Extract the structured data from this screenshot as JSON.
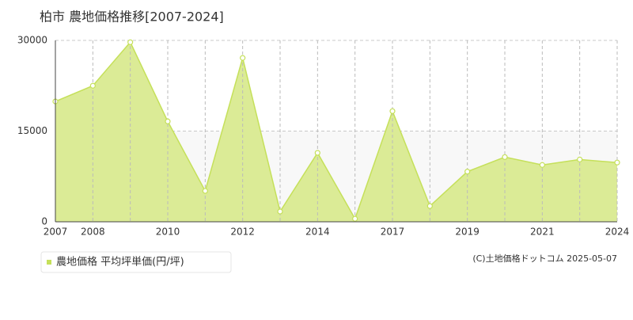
{
  "chart_data": {
    "type": "area",
    "title": "柏市 農地価格推移[2007-2024]",
    "categories": [
      "2007",
      "2008",
      null,
      "2010",
      null,
      "2012",
      null,
      "2014",
      null,
      "2017",
      null,
      "2019",
      null,
      "2021",
      null,
      "2024"
    ],
    "series": [
      {
        "name": "農地価格 平均坪単価(円/坪)",
        "color": "#c5e05a",
        "values": [
          19900,
          22500,
          29700,
          16600,
          5100,
          27100,
          1700,
          11400,
          500,
          18300,
          2600,
          8300,
          10700,
          9400,
          10300,
          9800
        ]
      }
    ],
    "ylim": [
      0,
      30000
    ],
    "yticks": [
      0,
      15000,
      30000
    ],
    "grid": true,
    "credit": "(C)土地価格ドットコム 2025-05-07"
  }
}
